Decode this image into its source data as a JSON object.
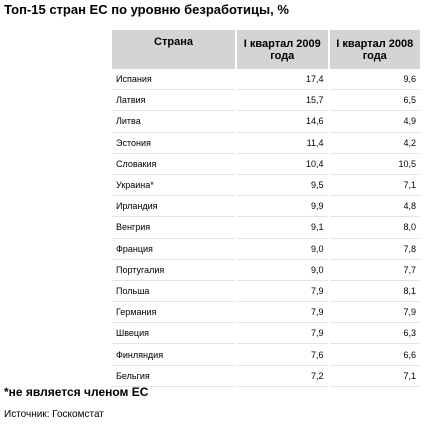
{
  "header": {
    "title": "Топ-15 стран ЕС по уровню безработицы, %"
  },
  "table": {
    "columns": [
      "Страна",
      "I квартал 2009 года",
      "I квартал 2008 года"
    ],
    "rows": [
      [
        "Испания",
        "17,4",
        "9,6"
      ],
      [
        "Латвия",
        "15,7",
        "6,5"
      ],
      [
        "Литва",
        "14,6",
        "4,9"
      ],
      [
        "Эстония",
        "11,4",
        "4,2"
      ],
      [
        "Словакия",
        "10,4",
        "10,5"
      ],
      [
        "Украина*",
        "9,5",
        "7,1"
      ],
      [
        "Ирландия",
        "9,9",
        "4,8"
      ],
      [
        "Венгрия",
        "9,1",
        "8,0"
      ],
      [
        "Франция",
        "9,0",
        "7,8"
      ],
      [
        "Португалия",
        "9,0",
        "7,7"
      ],
      [
        "Польша",
        "7,9",
        "8,1"
      ],
      [
        "Германия",
        "7,9",
        "7,9"
      ],
      [
        "Швеция",
        "7,9",
        "6,3"
      ],
      [
        "Финляндия",
        "7,6",
        "6,6"
      ],
      [
        "Бельгия",
        "7,2",
        "7,1"
      ]
    ]
  },
  "footnote": "*не является членом ЕС",
  "source": "Источник: Госкомстат"
}
